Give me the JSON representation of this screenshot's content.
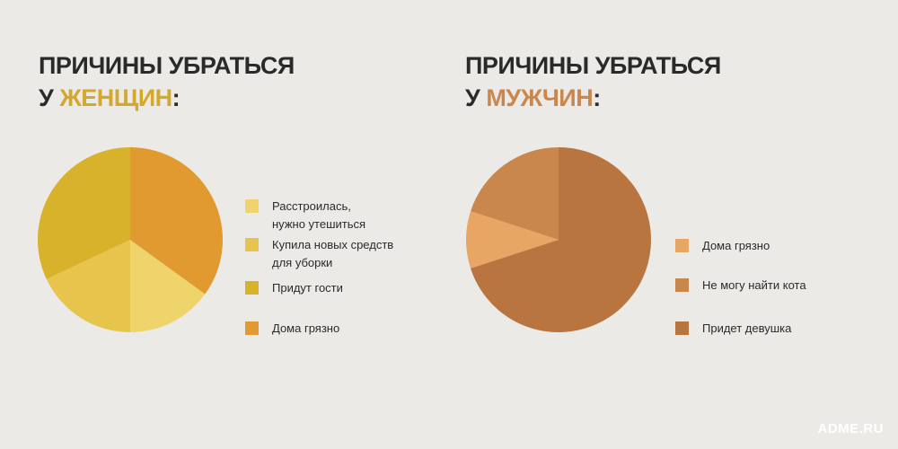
{
  "watermark": "ADME.RU",
  "charts": [
    {
      "title_line1": "ПРИЧИНЫ УБРАТЬСЯ",
      "title_prefix": "У ",
      "title_accent": "ЖЕНЩИН",
      "title_suffix": ":",
      "accent_color": "#d4a82c"
    },
    {
      "title_line1": "ПРИЧИНЫ УБРАТЬСЯ",
      "title_prefix": "У ",
      "title_accent": "МУЖЧИН",
      "title_suffix": ":",
      "accent_color": "#c9874d"
    }
  ],
  "chart_data": [
    {
      "type": "pie",
      "title": "ПРИЧИНЫ УБРАТЬСЯ У ЖЕНЩИН:",
      "slices": [
        {
          "label": "Расстроилась, нужно утешиться",
          "value": 15,
          "color": "#efd46c"
        },
        {
          "label": "Купила новых средств для уборки",
          "value": 18,
          "color": "#e7c44c"
        },
        {
          "label": "Придут гости",
          "value": 32,
          "color": "#d9b22c"
        },
        {
          "label": "Дома грязно",
          "value": 35,
          "color": "#e09a30"
        }
      ]
    },
    {
      "type": "pie",
      "title": "ПРИЧИНЫ УБРАТЬСЯ У МУЖЧИН:",
      "slices": [
        {
          "label": "Дома грязно",
          "value": 10,
          "color": "#e8a665"
        },
        {
          "label": "Не могу найти кота",
          "value": 20,
          "color": "#c9874d"
        },
        {
          "label": "Придет девушка",
          "value": 70,
          "color": "#b87540"
        }
      ]
    }
  ]
}
